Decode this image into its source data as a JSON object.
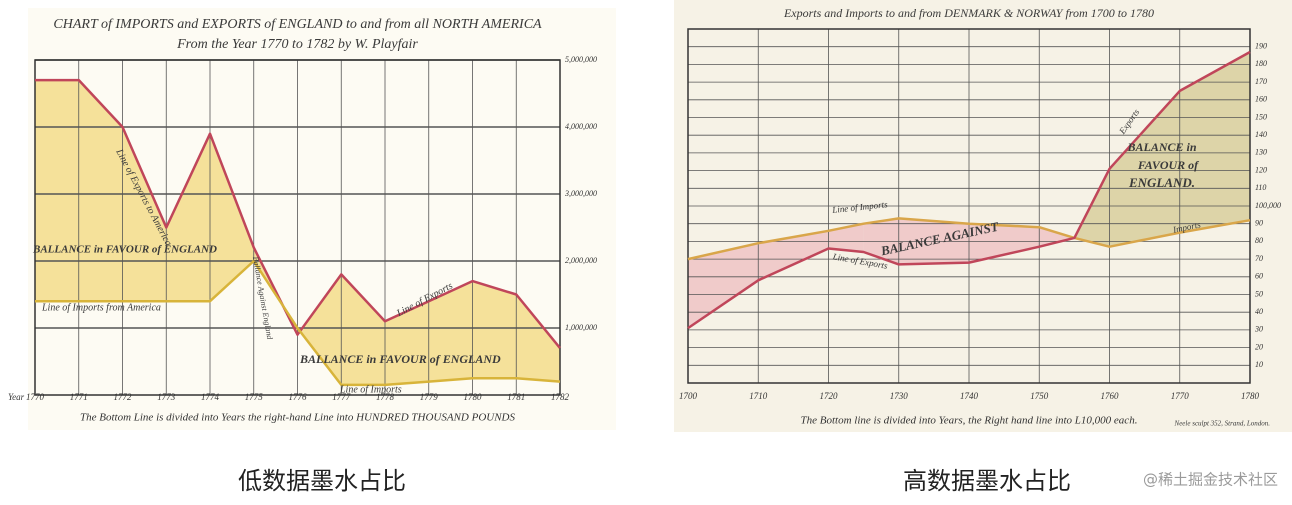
{
  "chart_data": [
    {
      "type": "line",
      "title": "CHART of IMPORTS and EXPORTS of ENGLAND to and from all NORTH AMERICA",
      "subtitle": "From the Year 1770 to 1782 by W. Playfair",
      "x": [
        1770,
        1771,
        1772,
        1773,
        1774,
        1775,
        1776,
        1777,
        1778,
        1779,
        1780,
        1781,
        1782
      ],
      "xlim": [
        1770,
        1782
      ],
      "xticks": [
        1770,
        1771,
        1772,
        1773,
        1774,
        1775,
        1776,
        1777,
        1778,
        1779,
        1780,
        1781,
        1782
      ],
      "ylim": [
        0,
        50
      ],
      "yticks": [
        {
          "value": 10,
          "label": "1,000,000"
        },
        {
          "value": 20,
          "label": "2,000,000"
        },
        {
          "value": 30,
          "label": "3,000,000"
        },
        {
          "value": 40,
          "label": "4,000,000"
        },
        {
          "value": 50,
          "label": "5,000,000"
        }
      ],
      "series": [
        {
          "name": "Line of Exports",
          "color": "#c0465a",
          "values": [
            47,
            47,
            40,
            25,
            39,
            22,
            9,
            18,
            11,
            14,
            17,
            15,
            7
          ]
        },
        {
          "name": "Line of Imports",
          "color": "#d8b43a",
          "values": [
            14,
            14,
            14,
            14,
            14,
            20,
            10,
            1.5,
            1.5,
            2,
            2.5,
            2.5,
            2
          ]
        }
      ],
      "fill_colors": [
        "#f3dc8a",
        "#eec3c8"
      ],
      "grid": true,
      "annotations": [
        "Line of Exports to America",
        "BALLANCE in FAVOUR of ENGLAND",
        "Line of Imports from America",
        "Ballance Against England",
        "Line of Exports",
        "BALLANCE in FAVOUR of ENGLAND",
        "Line of Imports",
        "Year"
      ],
      "footnote": "The Bottom Line is divided into Years the right-hand Line into HUNDRED THOUSAND POUNDS"
    },
    {
      "type": "line",
      "title": "Exports and Imports to and from DENMARK & NORWAY from 1700 to 1780",
      "x": [
        1700,
        1710,
        1720,
        1725,
        1730,
        1740,
        1750,
        1755,
        1760,
        1770,
        1780
      ],
      "xlim": [
        1700,
        1780
      ],
      "xticks": [
        1700,
        1710,
        1720,
        1730,
        1740,
        1750,
        1760,
        1770,
        1780
      ],
      "ylim": [
        0,
        200
      ],
      "yticks": [
        10,
        20,
        30,
        40,
        50,
        60,
        70,
        80,
        90,
        {
          "value": 100,
          "label": "100,000"
        },
        110,
        120,
        130,
        140,
        150,
        160,
        170,
        180,
        190
      ],
      "series": [
        {
          "name": "Line of Imports",
          "color": "#d9a64a",
          "values": [
            70,
            79,
            86,
            90,
            93,
            90,
            88,
            82,
            77,
            85,
            92
          ]
        },
        {
          "name": "Line of Exports",
          "color": "#c0465a",
          "values": [
            31,
            58,
            76,
            74,
            67,
            68,
            77,
            82,
            121,
            165,
            187
          ]
        }
      ],
      "fill_colors": [
        "#d8cf9c",
        "#efc4c4"
      ],
      "grid": true,
      "annotations": [
        "BALANCE AGAINST",
        "Exports",
        "Imports",
        "BALANCE in",
        "FAVOUR of",
        "ENGLAND.",
        "Neele sculpt 352, Strand, London."
      ],
      "footnote": "The Bottom line is divided into Years, the Right hand line into L10,000 each."
    }
  ],
  "captions": [
    "低数据墨水占比",
    "高数据墨水占比"
  ],
  "watermark": "@稀土掘金技术社区"
}
